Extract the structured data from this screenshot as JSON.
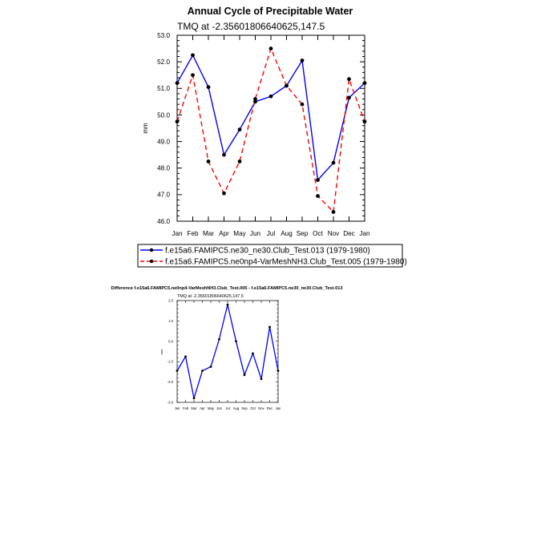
{
  "colors": {
    "series1": "#0000ff",
    "series2": "#ff0000",
    "diff": "#0000ff",
    "markers": "#000000",
    "axes": "#000000"
  },
  "chart_data": [
    {
      "type": "line",
      "title": "Annual Cycle of Precipitable Water",
      "subtitle": "TMQ at -2.35601806640625,147.5",
      "xlabel": "",
      "ylabel": "mm",
      "categories": [
        "Jan",
        "Feb",
        "Mar",
        "Apr",
        "May",
        "Jun",
        "Jul",
        "Aug",
        "Sep",
        "Oct",
        "Nov",
        "Dec",
        "Jan"
      ],
      "ylim": [
        46.0,
        53.0
      ],
      "yticks": [
        "46.0",
        "47.0",
        "48.0",
        "49.0",
        "50.0",
        "51.0",
        "52.0",
        "53.0"
      ],
      "series": [
        {
          "name": "f.e15a6.FAMIPC5.ne30_ne30.Club_Test.013 (1979-1980)",
          "style": "solid",
          "values": [
            51.2,
            52.25,
            51.05,
            48.5,
            49.45,
            50.5,
            50.7,
            51.1,
            52.05,
            47.55,
            48.2,
            50.65,
            51.2
          ]
        },
        {
          "name": "f.e15a6.FAMIPC5.ne0np4-VarMeshNH3.Club_Test.005 (1979-1980)",
          "style": "dashed",
          "values": [
            49.75,
            51.5,
            48.25,
            47.05,
            48.25,
            50.6,
            52.5,
            51.1,
            50.4,
            46.95,
            46.35,
            51.35,
            49.75
          ]
        }
      ],
      "legend_position": "bottom"
    },
    {
      "type": "line",
      "title": "Difference f.e15a6.FAMIPC5.ne0np4-VarMeshNH3.Club_Test.005 - f.e15a6.FAMIPC5.ne30_ne30.Club_Test.013",
      "subtitle": "TMQ at -2.35601806640625,147.5",
      "xlabel": "",
      "ylabel": "mm",
      "categories": [
        "Jan",
        "Feb",
        "Mar",
        "Apr",
        "May",
        "Jun",
        "Jul",
        "Aug",
        "Sep",
        "Oct",
        "Nov",
        "Dec",
        "Jan"
      ],
      "ylim": [
        -3.0,
        2.0
      ],
      "yticks": [
        "-3.0",
        "-2.0",
        "-1.0",
        "0.0",
        "1.0",
        "2.0"
      ],
      "series": [
        {
          "name": "difference",
          "style": "solid",
          "values": [
            -1.45,
            -0.75,
            -2.8,
            -1.45,
            -1.25,
            0.1,
            1.8,
            0.0,
            -1.65,
            -0.6,
            -1.85,
            0.7,
            -1.45
          ]
        }
      ]
    }
  ]
}
